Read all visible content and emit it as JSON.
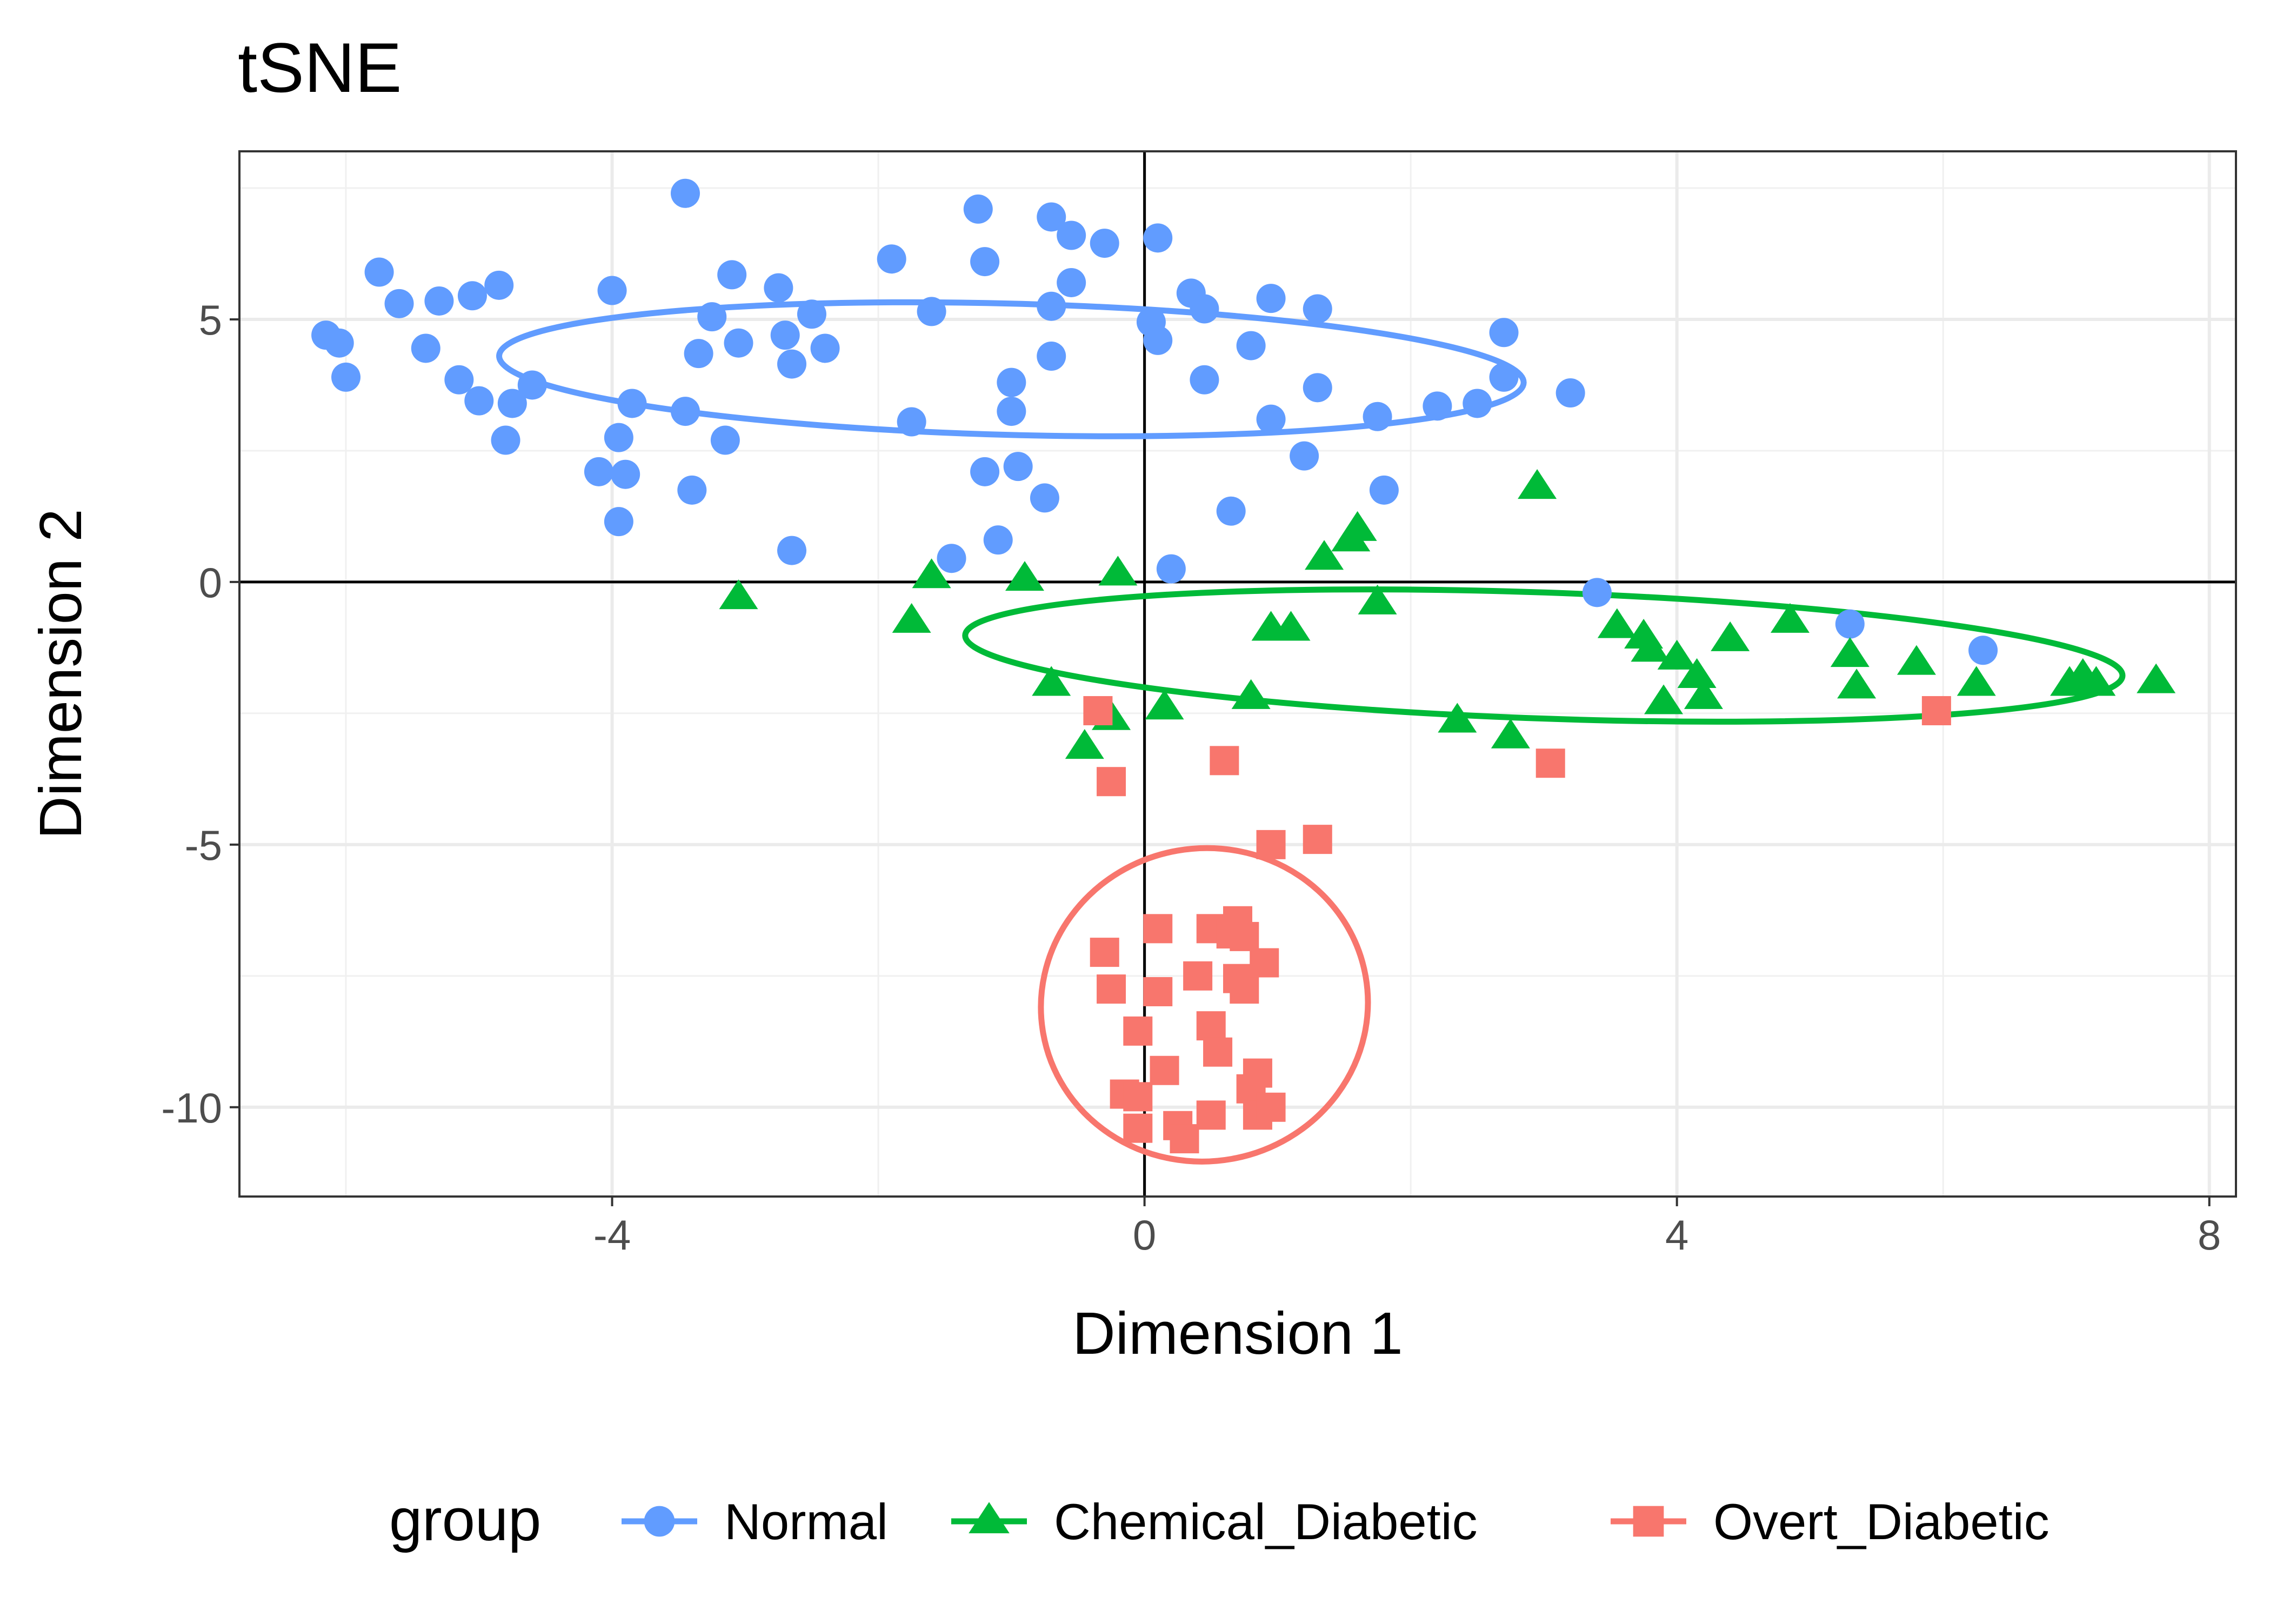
{
  "chart_data": {
    "type": "scatter",
    "title": "tSNE",
    "xlabel": "Dimension 1",
    "ylabel": "Dimension 2",
    "xlim": [
      -6.8,
      8.2
    ],
    "ylim": [
      -11.7,
      8.2
    ],
    "x_ticks": [
      -4,
      0,
      4,
      8
    ],
    "x_tick_labels": [
      "-4",
      "0",
      "4",
      "8"
    ],
    "y_ticks": [
      5,
      0,
      -5,
      -10
    ],
    "y_tick_labels": [
      "5",
      "0",
      "-5",
      "-10"
    ],
    "grid": true,
    "reference_lines": {
      "x": 0,
      "y": 0
    },
    "legend": {
      "title": "group",
      "position": "bottom"
    },
    "series": [
      {
        "name": "Normal",
        "color": "#619CFF",
        "marker": "circle",
        "ellipse": {
          "cx": -1.0,
          "cy": 4.05,
          "rx": 3.85,
          "ry": 1.25,
          "angle_deg": -1.5
        },
        "points": [
          [
            -6.15,
            4.7
          ],
          [
            -6.05,
            4.55
          ],
          [
            -6.0,
            3.9
          ],
          [
            -5.75,
            5.9
          ],
          [
            -5.6,
            5.3
          ],
          [
            -5.4,
            4.45
          ],
          [
            -5.3,
            5.35
          ],
          [
            -5.15,
            3.85
          ],
          [
            -5.05,
            5.45
          ],
          [
            -5.0,
            3.45
          ],
          [
            -4.85,
            5.65
          ],
          [
            -4.8,
            2.7
          ],
          [
            -4.75,
            3.4
          ],
          [
            -4.6,
            3.75
          ],
          [
            -4.1,
            2.1
          ],
          [
            -4.0,
            5.55
          ],
          [
            -3.95,
            2.75
          ],
          [
            -3.95,
            1.15
          ],
          [
            -3.9,
            2.05
          ],
          [
            -3.85,
            3.4
          ],
          [
            -3.45,
            7.4
          ],
          [
            -3.45,
            3.25
          ],
          [
            -3.4,
            1.75
          ],
          [
            -3.35,
            4.35
          ],
          [
            -3.25,
            5.05
          ],
          [
            -3.15,
            2.7
          ],
          [
            -3.1,
            5.85
          ],
          [
            -3.05,
            4.55
          ],
          [
            -2.75,
            5.6
          ],
          [
            -2.7,
            4.7
          ],
          [
            -2.65,
            4.15
          ],
          [
            -2.65,
            0.6
          ],
          [
            -2.5,
            5.1
          ],
          [
            -2.4,
            4.45
          ],
          [
            -1.9,
            6.15
          ],
          [
            -1.75,
            3.05
          ],
          [
            -1.6,
            5.15
          ],
          [
            -1.45,
            0.45
          ],
          [
            -1.25,
            7.1
          ],
          [
            -1.2,
            6.1
          ],
          [
            -1.2,
            2.1
          ],
          [
            -1.1,
            0.8
          ],
          [
            -1.0,
            3.8
          ],
          [
            -1.0,
            3.25
          ],
          [
            -0.95,
            2.2
          ],
          [
            -0.75,
            1.6
          ],
          [
            -0.7,
            6.95
          ],
          [
            -0.7,
            5.25
          ],
          [
            -0.7,
            4.3
          ],
          [
            -0.55,
            6.6
          ],
          [
            -0.55,
            5.7
          ],
          [
            -0.3,
            6.45
          ],
          [
            0.05,
            4.95
          ],
          [
            0.1,
            6.55
          ],
          [
            0.1,
            4.6
          ],
          [
            0.2,
            0.25
          ],
          [
            0.35,
            5.5
          ],
          [
            0.45,
            5.2
          ],
          [
            0.45,
            3.85
          ],
          [
            0.65,
            1.35
          ],
          [
            0.8,
            4.5
          ],
          [
            0.95,
            5.4
          ],
          [
            0.95,
            3.1
          ],
          [
            1.2,
            2.4
          ],
          [
            1.3,
            5.2
          ],
          [
            1.3,
            3.7
          ],
          [
            1.75,
            3.15
          ],
          [
            1.8,
            1.75
          ],
          [
            2.2,
            3.35
          ],
          [
            2.5,
            3.4
          ],
          [
            2.7,
            4.75
          ],
          [
            2.7,
            3.9
          ],
          [
            3.2,
            3.6
          ],
          [
            3.4,
            -0.2
          ],
          [
            5.3,
            -0.8
          ],
          [
            6.3,
            -1.3
          ]
        ]
      },
      {
        "name": "Chemical_Diabetic",
        "color": "#00BA38",
        "marker": "triangle",
        "ellipse": {
          "cx": 3.0,
          "cy": -1.4,
          "rx": 4.35,
          "ry": 1.2,
          "angle_deg": -2.0
        },
        "points": [
          [
            -3.05,
            -0.3
          ],
          [
            -1.75,
            -0.75
          ],
          [
            -1.6,
            0.1
          ],
          [
            -0.9,
            0.05
          ],
          [
            -0.7,
            -1.95
          ],
          [
            -0.45,
            -3.15
          ],
          [
            -0.25,
            -2.6
          ],
          [
            -0.2,
            0.15
          ],
          [
            0.15,
            -2.4
          ],
          [
            0.8,
            -2.2
          ],
          [
            0.95,
            -0.9
          ],
          [
            1.1,
            -0.9
          ],
          [
            1.35,
            0.45
          ],
          [
            1.55,
            0.8
          ],
          [
            1.6,
            1.0
          ],
          [
            1.75,
            -0.4
          ],
          [
            2.35,
            -2.65
          ],
          [
            2.75,
            -2.95
          ],
          [
            2.95,
            1.8
          ],
          [
            3.55,
            -0.85
          ],
          [
            3.75,
            -1.05
          ],
          [
            3.8,
            -1.3
          ],
          [
            3.9,
            -2.3
          ],
          [
            4.0,
            -1.45
          ],
          [
            4.15,
            -1.8
          ],
          [
            4.2,
            -2.2
          ],
          [
            4.4,
            -1.1
          ],
          [
            4.85,
            -0.75
          ],
          [
            5.3,
            -1.4
          ],
          [
            5.35,
            -2.0
          ],
          [
            5.8,
            -1.55
          ],
          [
            6.25,
            -1.95
          ],
          [
            6.95,
            -1.95
          ],
          [
            7.05,
            -1.8
          ],
          [
            7.15,
            -1.95
          ],
          [
            7.6,
            -1.9
          ]
        ]
      },
      {
        "name": "Overt_Diabetic",
        "color": "#F8766D",
        "marker": "square",
        "ellipse": {
          "cx": 0.45,
          "cy": -8.05,
          "rx": 1.23,
          "ry": 2.98,
          "angle_deg": 10
        },
        "points": [
          [
            -0.35,
            -2.45
          ],
          [
            -0.25,
            -3.8
          ],
          [
            -0.3,
            -7.05
          ],
          [
            -0.25,
            -7.75
          ],
          [
            -0.15,
            -9.75
          ],
          [
            0.1,
            -6.6
          ],
          [
            0.1,
            -7.8
          ],
          [
            0.15,
            -9.3
          ],
          [
            -0.05,
            -8.55
          ],
          [
            -0.05,
            -9.8
          ],
          [
            -0.05,
            -10.4
          ],
          [
            0.25,
            -10.35
          ],
          [
            0.3,
            -10.6
          ],
          [
            0.5,
            -6.6
          ],
          [
            0.4,
            -7.5
          ],
          [
            0.6,
            -3.4
          ],
          [
            0.5,
            -8.45
          ],
          [
            0.55,
            -8.95
          ],
          [
            0.5,
            -10.15
          ],
          [
            0.65,
            -6.7
          ],
          [
            0.7,
            -7.55
          ],
          [
            0.7,
            -6.45
          ],
          [
            0.75,
            -6.75
          ],
          [
            0.75,
            -7.75
          ],
          [
            0.8,
            -9.65
          ],
          [
            0.85,
            -9.35
          ],
          [
            0.85,
            -10.15
          ],
          [
            0.9,
            -7.25
          ],
          [
            0.95,
            -10.0
          ],
          [
            0.95,
            -5.0
          ],
          [
            1.3,
            -4.9
          ],
          [
            3.05,
            -3.45
          ],
          [
            5.95,
            -2.45
          ]
        ]
      }
    ]
  }
}
